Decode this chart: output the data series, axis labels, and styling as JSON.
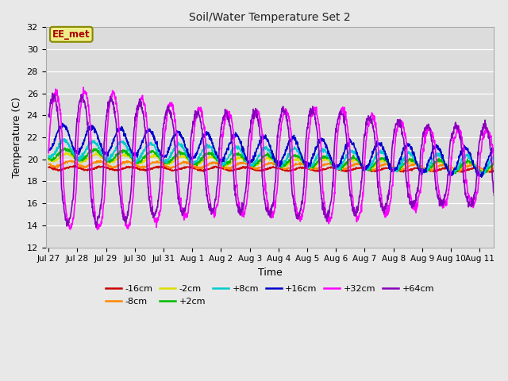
{
  "title": "Soil/Water Temperature Set 2",
  "xlabel": "Time",
  "ylabel": "Temperature (C)",
  "ylim": [
    12,
    32
  ],
  "yticks": [
    12,
    14,
    16,
    18,
    20,
    22,
    24,
    26,
    28,
    30,
    32
  ],
  "fig_facecolor": "#e8e8e8",
  "ax_facecolor": "#dcdcdc",
  "series": {
    "-16cm": {
      "color": "#cc0000",
      "linewidth": 1.2
    },
    "-8cm": {
      "color": "#ff8800",
      "linewidth": 1.2
    },
    "-2cm": {
      "color": "#dddd00",
      "linewidth": 1.2
    },
    "+2cm": {
      "color": "#00bb00",
      "linewidth": 1.2
    },
    "+8cm": {
      "color": "#00cccc",
      "linewidth": 1.2
    },
    "+16cm": {
      "color": "#0000cc",
      "linewidth": 1.2
    },
    "+32cm": {
      "color": "#ff00ff",
      "linewidth": 1.2
    },
    "+64cm": {
      "color": "#8800bb",
      "linewidth": 1.2
    }
  },
  "annotation_text": "EE_met",
  "annotation_color": "#aa0000",
  "annotation_bg": "#eeee88",
  "annotation_border": "#888800",
  "x_tick_labels": [
    "Jul 27",
    "Jul 28",
    "Jul 29",
    "Jul 30",
    "Jul 31",
    "Aug 1",
    "Aug 2",
    "Aug 3",
    "Aug 4",
    "Aug 5",
    "Aug 6",
    "Aug 7",
    "Aug 8",
    "Aug 9",
    "Aug 10",
    "Aug 11"
  ],
  "x_tick_positions": [
    0,
    1,
    2,
    3,
    4,
    5,
    6,
    7,
    8,
    9,
    10,
    11,
    12,
    13,
    14,
    15
  ]
}
